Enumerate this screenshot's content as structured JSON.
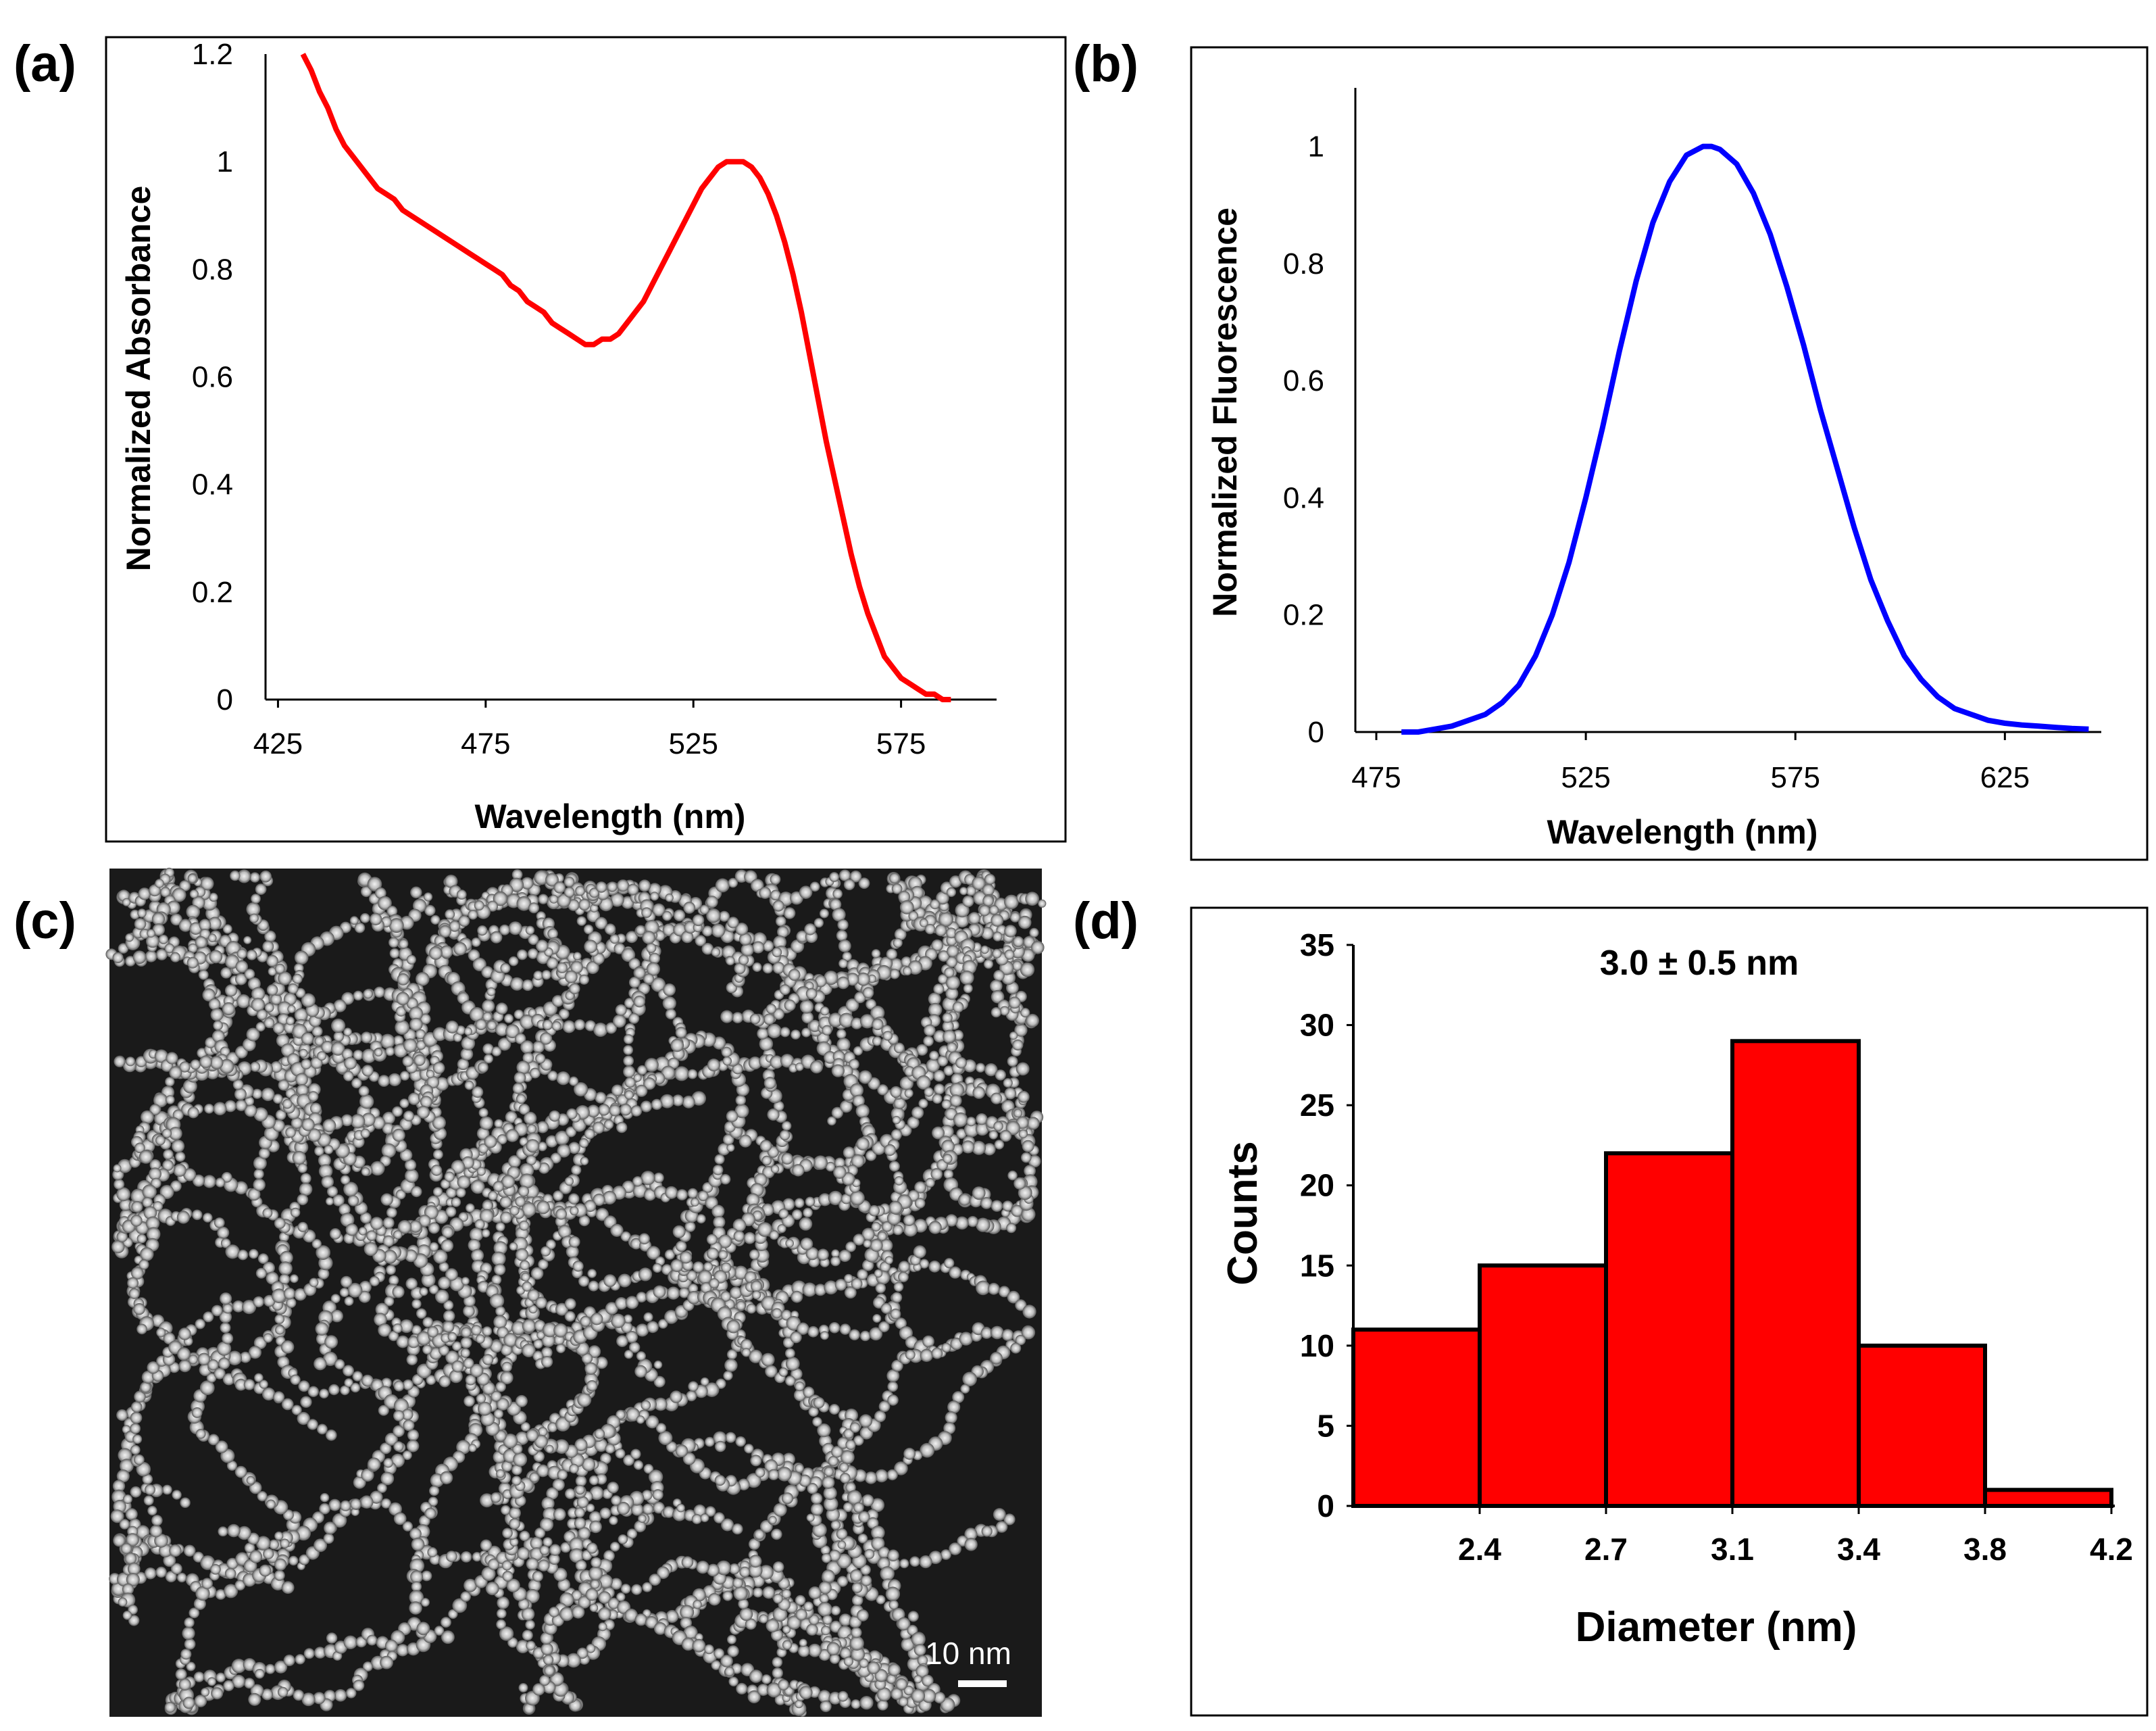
{
  "panel_labels": {
    "a": "(a)",
    "b": "(b)",
    "c": "(c)",
    "d": "(d)"
  },
  "colors": {
    "absorbance": "#ff0000",
    "fluorescence": "#0000ff",
    "histogram": "#ff0000",
    "axis": "#000000",
    "tem_bg": "#1a1a1a"
  },
  "tem_image": {
    "scale_bar_label": "10 nm"
  },
  "chart_data": [
    {
      "panel": "a",
      "type": "line",
      "xlabel": "Wavelength (nm)",
      "ylabel": "Normalized Absorbance",
      "xlim": [
        422,
        598
      ],
      "ylim": [
        0,
        1.2
      ],
      "xticks": [
        425,
        475,
        525,
        575
      ],
      "yticks": [
        0,
        0.2,
        0.4,
        0.6,
        0.8,
        1,
        1.2
      ],
      "series": [
        {
          "name": "Absorbance",
          "x": [
            431,
            433,
            435,
            437,
            439,
            441,
            443,
            445,
            447,
            449,
            451,
            453,
            455,
            457,
            459,
            461,
            463,
            465,
            467,
            469,
            471,
            473,
            475,
            477,
            479,
            481,
            483,
            485,
            487,
            489,
            491,
            493,
            495,
            497,
            499,
            501,
            503,
            505,
            507,
            509,
            511,
            513,
            515,
            517,
            519,
            521,
            523,
            525,
            527,
            529,
            531,
            533,
            535,
            537,
            539,
            541,
            543,
            545,
            547,
            549,
            551,
            553,
            555,
            557,
            559,
            561,
            563,
            565,
            567,
            569,
            571,
            573,
            575,
            577,
            579,
            581,
            583,
            585,
            587
          ],
          "y": [
            1.2,
            1.17,
            1.13,
            1.1,
            1.06,
            1.03,
            1.01,
            0.99,
            0.97,
            0.95,
            0.94,
            0.93,
            0.91,
            0.9,
            0.89,
            0.88,
            0.87,
            0.86,
            0.85,
            0.84,
            0.83,
            0.82,
            0.81,
            0.8,
            0.79,
            0.77,
            0.76,
            0.74,
            0.73,
            0.72,
            0.7,
            0.69,
            0.68,
            0.67,
            0.66,
            0.66,
            0.67,
            0.67,
            0.68,
            0.7,
            0.72,
            0.74,
            0.77,
            0.8,
            0.83,
            0.86,
            0.89,
            0.92,
            0.95,
            0.97,
            0.99,
            1.0,
            1.0,
            1.0,
            0.99,
            0.97,
            0.94,
            0.9,
            0.85,
            0.79,
            0.72,
            0.64,
            0.56,
            0.48,
            0.41,
            0.34,
            0.27,
            0.21,
            0.16,
            0.12,
            0.08,
            0.06,
            0.04,
            0.03,
            0.02,
            0.01,
            0.01,
            0.0,
            0.0
          ]
        }
      ]
    },
    {
      "panel": "b",
      "type": "line",
      "xlabel": "Wavelength (nm)",
      "ylabel": "Normalized Fluorescence",
      "xlim": [
        470,
        648
      ],
      "ylim": [
        0,
        1.1
      ],
      "xticks": [
        475,
        525,
        575,
        625
      ],
      "yticks": [
        0,
        0.2,
        0.4,
        0.6,
        0.8,
        1
      ],
      "series": [
        {
          "name": "Fluorescence",
          "x": [
            481,
            485,
            489,
            493,
            497,
            501,
            505,
            509,
            513,
            517,
            521,
            525,
            529,
            533,
            537,
            541,
            545,
            549,
            553,
            555,
            557,
            561,
            565,
            569,
            573,
            577,
            581,
            585,
            589,
            593,
            597,
            601,
            605,
            609,
            613,
            617,
            621,
            625,
            629,
            633,
            637,
            641,
            645
          ],
          "y": [
            0.0,
            0.0,
            0.005,
            0.01,
            0.02,
            0.03,
            0.05,
            0.08,
            0.13,
            0.2,
            0.29,
            0.4,
            0.52,
            0.65,
            0.77,
            0.87,
            0.94,
            0.985,
            1.0,
            1.0,
            0.995,
            0.97,
            0.92,
            0.85,
            0.76,
            0.66,
            0.55,
            0.45,
            0.35,
            0.26,
            0.19,
            0.13,
            0.09,
            0.06,
            0.04,
            0.03,
            0.02,
            0.015,
            0.012,
            0.01,
            0.008,
            0.006,
            0.005
          ]
        }
      ]
    },
    {
      "panel": "d",
      "type": "bar",
      "title": "3.0 ± 0.5 nm",
      "xlabel": "Diameter (nm)",
      "ylabel": "Counts",
      "ylim": [
        0,
        35
      ],
      "yticks": [
        0,
        5,
        10,
        15,
        20,
        25,
        30,
        35
      ],
      "bin_edges": [
        2.0,
        2.4,
        2.7,
        3.1,
        3.4,
        3.8,
        4.2
      ],
      "xtick_labels": [
        "2.4",
        "2.7",
        "3.1",
        "3.4",
        "3.8",
        "4.2"
      ],
      "values": [
        11,
        15,
        22,
        29,
        10,
        1
      ]
    }
  ]
}
